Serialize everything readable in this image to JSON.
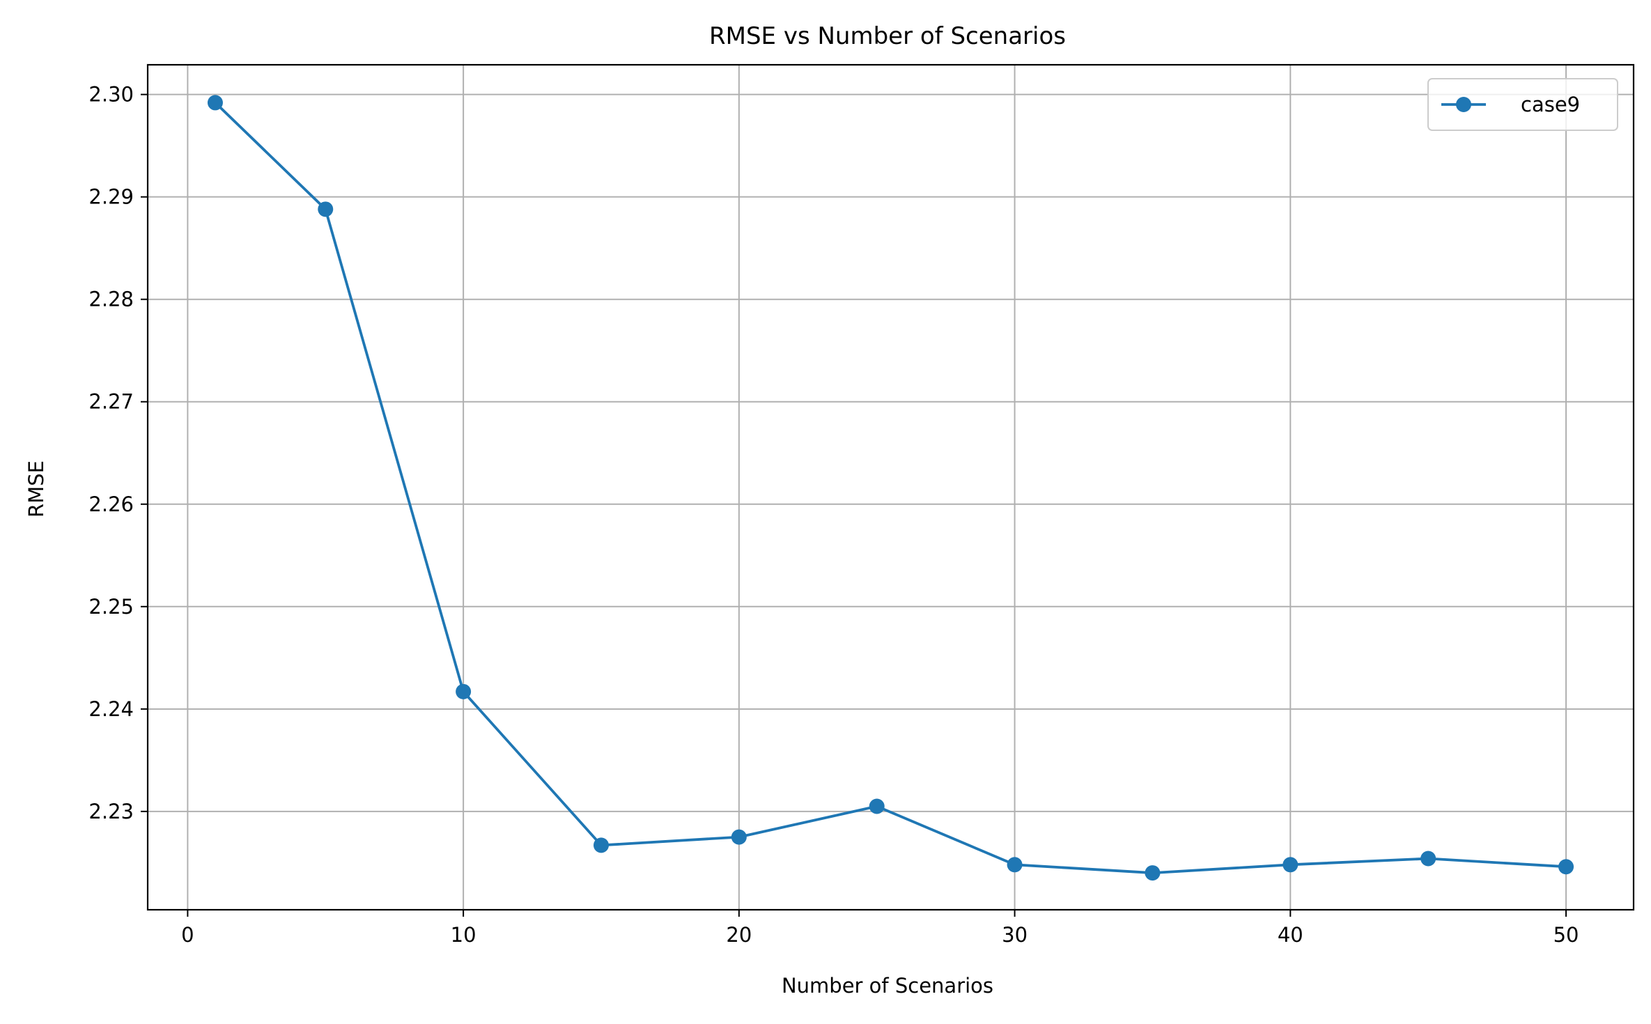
{
  "chart_data": {
    "type": "line",
    "title": "RMSE vs Number of Scenarios",
    "xlabel": "Number of Scenarios",
    "ylabel": "RMSE",
    "xlim": [
      -1.45,
      52.45
    ],
    "ylim": [
      2.2204,
      2.3029
    ],
    "xticks": [
      0,
      10,
      20,
      30,
      40,
      50
    ],
    "yticks": [
      2.23,
      2.24,
      2.25,
      2.26,
      2.27,
      2.28,
      2.29,
      2.3
    ],
    "xtick_labels": [
      "0",
      "10",
      "20",
      "30",
      "40",
      "50"
    ],
    "ytick_labels": [
      "2.23",
      "2.24",
      "2.25",
      "2.26",
      "2.27",
      "2.28",
      "2.29",
      "2.30"
    ],
    "grid": true,
    "legend_position": "top-right",
    "series": [
      {
        "name": "case9",
        "color": "#1f77b4",
        "marker": "circle",
        "x": [
          1,
          5,
          10,
          15,
          20,
          25,
          30,
          35,
          40,
          45,
          50
        ],
        "y": [
          2.2992,
          2.2888,
          2.2417,
          2.2267,
          2.2275,
          2.2305,
          2.2248,
          2.224,
          2.2248,
          2.2254,
          2.2246
        ]
      }
    ]
  }
}
